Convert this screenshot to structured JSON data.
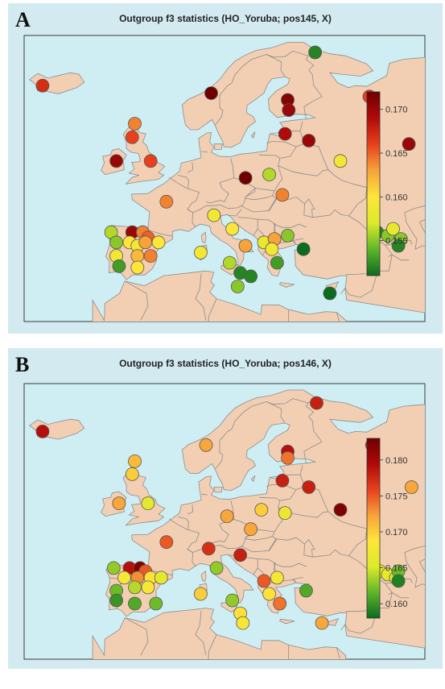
{
  "colors": {
    "sea": "#cfeef4",
    "land": "#f2cfb3",
    "border": "#8c8c8c",
    "scale": [
      "#0b6b1f",
      "#5fb52a",
      "#dcea2a",
      "#ffe53a",
      "#f7a33a",
      "#e8401c",
      "#b00a0a",
      "#6e0000"
    ]
  },
  "panels": [
    {
      "label": "A",
      "title": "Outgroup f3 statistics (HO_Yoruba; pos145, X)",
      "legend": {
        "min": 0.151,
        "max": 0.172,
        "ticks": [
          "0.170",
          "0.165",
          "0.160",
          "0.155"
        ],
        "tick_values": [
          0.17,
          0.165,
          0.16,
          0.155
        ]
      },
      "points": [
        {
          "lon": -21.5,
          "lat": 64.6,
          "v": 0.167
        },
        {
          "lon": 10.5,
          "lat": 63.5,
          "v": 0.172
        },
        {
          "lon": 30.2,
          "lat": 69.5,
          "v": 0.152
        },
        {
          "lon": 25.0,
          "lat": 62.5,
          "v": 0.171
        },
        {
          "lon": 25.2,
          "lat": 61.0,
          "v": 0.17
        },
        {
          "lon": 40.5,
          "lat": 63.0,
          "v": 0.166
        },
        {
          "lon": 24.5,
          "lat": 57.5,
          "v": 0.169
        },
        {
          "lon": 29.0,
          "lat": 56.5,
          "v": 0.17
        },
        {
          "lon": 48.0,
          "lat": 56.0,
          "v": 0.17
        },
        {
          "lon": 35.0,
          "lat": 53.5,
          "v": 0.159
        },
        {
          "lon": -4.0,
          "lat": 59.0,
          "v": 0.164
        },
        {
          "lon": -4.5,
          "lat": 57.0,
          "v": 0.166
        },
        {
          "lon": -7.5,
          "lat": 53.5,
          "v": 0.17
        },
        {
          "lon": -1.0,
          "lat": 53.5,
          "v": 0.166
        },
        {
          "lon": 17.0,
          "lat": 51.0,
          "v": 0.172
        },
        {
          "lon": 21.5,
          "lat": 51.5,
          "v": 0.156
        },
        {
          "lon": 24.0,
          "lat": 48.5,
          "v": 0.164
        },
        {
          "lon": 2.0,
          "lat": 47.5,
          "v": 0.164
        },
        {
          "lon": 11.0,
          "lat": 45.5,
          "v": 0.159
        },
        {
          "lon": 14.5,
          "lat": 43.5,
          "v": 0.16
        },
        {
          "lon": -8.5,
          "lat": 43.0,
          "v": 0.156
        },
        {
          "lon": -4.5,
          "lat": 43.0,
          "v": 0.17
        },
        {
          "lon": -2.5,
          "lat": 43.0,
          "v": 0.164
        },
        {
          "lon": -1.5,
          "lat": 42.2,
          "v": 0.165
        },
        {
          "lon": -7.5,
          "lat": 41.5,
          "v": 0.155
        },
        {
          "lon": -5.0,
          "lat": 41.5,
          "v": 0.16
        },
        {
          "lon": -3.5,
          "lat": 41.0,
          "v": 0.159
        },
        {
          "lon": -2.0,
          "lat": 41.5,
          "v": 0.163
        },
        {
          "lon": 0.5,
          "lat": 41.5,
          "v": 0.16
        },
        {
          "lon": -7.5,
          "lat": 39.5,
          "v": 0.159
        },
        {
          "lon": -3.5,
          "lat": 39.5,
          "v": 0.162
        },
        {
          "lon": -1.0,
          "lat": 39.5,
          "v": 0.164
        },
        {
          "lon": -7.0,
          "lat": 38.0,
          "v": 0.153
        },
        {
          "lon": -3.5,
          "lat": 37.8,
          "v": 0.16
        },
        {
          "lon": 8.5,
          "lat": 40.0,
          "v": 0.159
        },
        {
          "lon": 14.0,
          "lat": 38.5,
          "v": 0.156
        },
        {
          "lon": 16.0,
          "lat": 37.0,
          "v": 0.152
        },
        {
          "lon": 18.0,
          "lat": 36.5,
          "v": 0.152
        },
        {
          "lon": 15.5,
          "lat": 35.0,
          "v": 0.155
        },
        {
          "lon": 17.0,
          "lat": 41.0,
          "v": 0.163
        },
        {
          "lon": 20.5,
          "lat": 41.5,
          "v": 0.158
        },
        {
          "lon": 22.5,
          "lat": 42.0,
          "v": 0.163
        },
        {
          "lon": 25.0,
          "lat": 42.5,
          "v": 0.155
        },
        {
          "lon": 22.0,
          "lat": 40.5,
          "v": 0.159
        },
        {
          "lon": 23.0,
          "lat": 38.5,
          "v": 0.153
        },
        {
          "lon": 28.0,
          "lat": 40.5,
          "v": 0.151
        },
        {
          "lon": 33.0,
          "lat": 34.0,
          "v": 0.151
        },
        {
          "lon": 42.0,
          "lat": 43.0,
          "v": 0.152
        },
        {
          "lon": 44.0,
          "lat": 42.5,
          "v": 0.155
        },
        {
          "lon": 45.0,
          "lat": 43.5,
          "v": 0.158
        },
        {
          "lon": 46.5,
          "lat": 42.0,
          "v": 0.155
        },
        {
          "lon": 46.0,
          "lat": 41.0,
          "v": 0.152
        }
      ]
    },
    {
      "label": "B",
      "title": "Outgroup f3 statistics (HO_Yoruba; pos146, X)",
      "legend": {
        "min": 0.158,
        "max": 0.183,
        "ticks": [
          "0.180",
          "0.175",
          "0.170",
          "0.165",
          "0.160"
        ],
        "tick_values": [
          0.18,
          0.175,
          0.17,
          0.165,
          0.16
        ]
      },
      "points": [
        {
          "lon": -21.5,
          "lat": 64.6,
          "v": 0.179
        },
        {
          "lon": 30.5,
          "lat": 69.0,
          "v": 0.178
        },
        {
          "lon": 9.5,
          "lat": 62.5,
          "v": 0.172
        },
        {
          "lon": 25.0,
          "lat": 61.5,
          "v": 0.179
        },
        {
          "lon": 25.0,
          "lat": 60.5,
          "v": 0.174
        },
        {
          "lon": 41.0,
          "lat": 62.5,
          "v": 0.177
        },
        {
          "lon": 24.0,
          "lat": 57.0,
          "v": 0.178
        },
        {
          "lon": 29.0,
          "lat": 56.0,
          "v": 0.178
        },
        {
          "lon": 48.5,
          "lat": 56.0,
          "v": 0.172
        },
        {
          "lon": 35.0,
          "lat": 52.5,
          "v": 0.182
        },
        {
          "lon": -4.0,
          "lat": 60.0,
          "v": 0.171
        },
        {
          "lon": -4.5,
          "lat": 58.0,
          "v": 0.17
        },
        {
          "lon": -7.0,
          "lat": 53.5,
          "v": 0.172
        },
        {
          "lon": -1.5,
          "lat": 53.5,
          "v": 0.166
        },
        {
          "lon": 13.5,
          "lat": 51.5,
          "v": 0.172
        },
        {
          "lon": 20.0,
          "lat": 52.5,
          "v": 0.17
        },
        {
          "lon": 24.5,
          "lat": 52.0,
          "v": 0.167
        },
        {
          "lon": 18.0,
          "lat": 49.5,
          "v": 0.172
        },
        {
          "lon": 2.0,
          "lat": 47.5,
          "v": 0.175
        },
        {
          "lon": 10.0,
          "lat": 46.5,
          "v": 0.177
        },
        {
          "lon": 16.0,
          "lat": 45.5,
          "v": 0.178
        },
        {
          "lon": -8.0,
          "lat": 43.5,
          "v": 0.163
        },
        {
          "lon": -5.0,
          "lat": 43.5,
          "v": 0.179
        },
        {
          "lon": -3.0,
          "lat": 43.5,
          "v": 0.182
        },
        {
          "lon": -2.0,
          "lat": 43.0,
          "v": 0.175
        },
        {
          "lon": -6.0,
          "lat": 42.0,
          "v": 0.168
        },
        {
          "lon": -3.5,
          "lat": 42.0,
          "v": 0.173
        },
        {
          "lon": -1.0,
          "lat": 42.0,
          "v": 0.169
        },
        {
          "lon": 1.0,
          "lat": 42.0,
          "v": 0.166
        },
        {
          "lon": -7.5,
          "lat": 40.0,
          "v": 0.162
        },
        {
          "lon": -4.0,
          "lat": 40.5,
          "v": 0.164
        },
        {
          "lon": -1.5,
          "lat": 40.5,
          "v": 0.168
        },
        {
          "lon": -7.5,
          "lat": 38.5,
          "v": 0.16
        },
        {
          "lon": -4.0,
          "lat": 38.0,
          "v": 0.161
        },
        {
          "lon": 0.0,
          "lat": 38.0,
          "v": 0.162
        },
        {
          "lon": 11.5,
          "lat": 43.5,
          "v": 0.163
        },
        {
          "lon": 8.5,
          "lat": 39.5,
          "v": 0.17
        },
        {
          "lon": 14.5,
          "lat": 38.5,
          "v": 0.163
        },
        {
          "lon": 16.0,
          "lat": 36.5,
          "v": 0.169
        },
        {
          "lon": 16.5,
          "lat": 35.0,
          "v": 0.168
        },
        {
          "lon": 20.5,
          "lat": 41.5,
          "v": 0.175
        },
        {
          "lon": 23.0,
          "lat": 42.0,
          "v": 0.168
        },
        {
          "lon": 21.5,
          "lat": 39.5,
          "v": 0.169
        },
        {
          "lon": 23.5,
          "lat": 38.0,
          "v": 0.174
        },
        {
          "lon": 28.5,
          "lat": 40.0,
          "v": 0.161
        },
        {
          "lon": 31.5,
          "lat": 35.0,
          "v": 0.172
        },
        {
          "lon": 42.5,
          "lat": 43.0,
          "v": 0.166
        },
        {
          "lon": 44.0,
          "lat": 42.5,
          "v": 0.166
        },
        {
          "lon": 45.5,
          "lat": 42.0,
          "v": 0.165
        },
        {
          "lon": 46.0,
          "lat": 43.0,
          "v": 0.162
        },
        {
          "lon": 46.0,
          "lat": 41.5,
          "v": 0.159
        }
      ]
    }
  ]
}
